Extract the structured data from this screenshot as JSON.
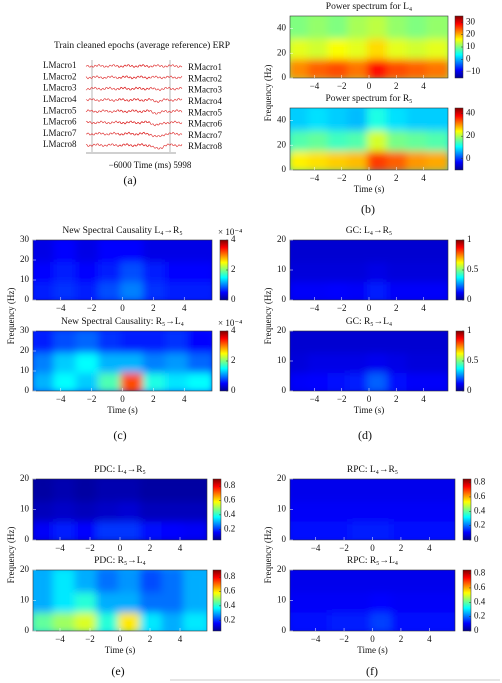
{
  "erp_panel": {
    "title": "Train cleaned epochs (average reference) ERP",
    "left_channels": [
      "LMacro1",
      "LMacro2",
      "LMacro3",
      "LMacro4",
      "LMacro5",
      "LMacro6",
      "LMacro7",
      "LMacro8"
    ],
    "right_channels": [
      "RMacro1",
      "RMacro2",
      "RMacro3",
      "RMacro4",
      "RMacro5",
      "RMacro6",
      "RMacro7",
      "RMacro8"
    ],
    "time_axis": "−6000 Time (ms) 5998"
  },
  "panel_labels": [
    "(a)",
    "(b)",
    "(c)",
    "(d)",
    "(e)",
    "(f)"
  ],
  "chart_data": [
    {
      "type": "heatmap",
      "title": "Power spectrum for L₄",
      "xlim": [
        -5.8,
        5.8
      ],
      "xticks": [
        {
          "value": -4,
          "label": "−4"
        },
        {
          "value": -2,
          "label": "−2"
        },
        0,
        2,
        4
      ],
      "ylim": [
        0,
        50
      ],
      "yticks": [
        0,
        20,
        40
      ],
      "colorbar": {
        "lim": [
          -15,
          35
        ],
        "ticks": [
          {
            "value": -10,
            "label": "−10"
          },
          0,
          10,
          20,
          30
        ]
      },
      "z": [
        [
          22,
          24,
          25,
          23,
          28,
          25,
          24,
          23
        ],
        [
          15,
          14,
          16,
          15,
          18,
          15,
          14,
          15
        ],
        [
          10,
          11,
          10,
          12,
          13,
          11,
          10,
          11
        ]
      ]
    },
    {
      "type": "heatmap",
      "title": "Power spectrum for R₅",
      "xlabel": "Time (s)",
      "ylabel": "Frequency (Hz)",
      "xlim": [
        -5.8,
        5.8
      ],
      "xticks": [
        {
          "value": -4,
          "label": "−4"
        },
        {
          "value": -2,
          "label": "−2"
        },
        0,
        2,
        4
      ],
      "ylim": [
        0,
        50
      ],
      "yticks": [
        0,
        20,
        40
      ],
      "colorbar": {
        "lim": [
          -10,
          45
        ],
        "ticks": [
          0,
          20,
          40
        ]
      },
      "z": [
        [
          25,
          26,
          27,
          28,
          35,
          33,
          30,
          29
        ],
        [
          15,
          16,
          14,
          15,
          22,
          17,
          16,
          15
        ],
        [
          8,
          9,
          8,
          7,
          12,
          9,
          8,
          8
        ]
      ]
    },
    {
      "type": "heatmap",
      "title": "New Spectral Causality L₄→R₅",
      "xlim": [
        -5.8,
        5.8
      ],
      "xticks": [
        {
          "value": -4,
          "label": "−4"
        },
        {
          "value": -2,
          "label": "−2"
        },
        0,
        2,
        4
      ],
      "ylim": [
        0,
        30
      ],
      "yticks": [
        0,
        10,
        20,
        30
      ],
      "colorbar": {
        "lim": [
          0,
          4
        ],
        "ticks": [
          0,
          2,
          4
        ],
        "label": "× 10⁻⁴"
      },
      "z": [
        [
          0.6,
          0.7,
          0.6,
          0.8,
          1.0,
          0.7,
          0.6,
          0.6
        ],
        [
          0.5,
          0.6,
          0.5,
          0.6,
          0.8,
          0.6,
          0.5,
          0.5
        ],
        [
          0.4,
          0.5,
          0.4,
          0.5,
          0.5,
          0.4,
          0.4,
          0.4
        ]
      ]
    },
    {
      "type": "heatmap",
      "title": "New Spectral Causality: R₅→L₄",
      "xlabel": "Time (s)",
      "ylabel": "Frequency (Hz)",
      "xlim": [
        -5.8,
        5.8
      ],
      "xticks": [
        {
          "value": -4,
          "label": "−4"
        },
        {
          "value": -2,
          "label": "−2"
        },
        0,
        2,
        4
      ],
      "ylim": [
        0,
        30
      ],
      "yticks": [
        0,
        10,
        20,
        30
      ],
      "colorbar": {
        "lim": [
          0,
          4
        ],
        "ticks": [
          0,
          2,
          4
        ],
        "label": "× 10⁻⁴"
      },
      "z": [
        [
          1.2,
          1.5,
          1.3,
          1.8,
          3.2,
          1.6,
          1.4,
          1.5
        ],
        [
          1.0,
          1.3,
          1.5,
          1.2,
          1.2,
          1.0,
          1.1,
          0.9
        ],
        [
          0.6,
          0.8,
          0.9,
          0.7,
          0.6,
          0.6,
          0.7,
          0.5
        ]
      ]
    },
    {
      "type": "heatmap",
      "title": "GC: L₄→R₅",
      "xlim": [
        -5.8,
        5.8
      ],
      "xticks": [
        {
          "value": -4,
          "label": "−4"
        },
        {
          "value": -2,
          "label": "−2"
        },
        0,
        2,
        4
      ],
      "ylim": [
        0,
        20
      ],
      "yticks": [
        0,
        10,
        20
      ],
      "colorbar": {
        "lim": [
          0,
          1
        ],
        "ticks": [
          0,
          0.5,
          1
        ]
      },
      "z": [
        [
          0.12,
          0.12,
          0.13,
          0.12,
          0.15,
          0.12,
          0.12,
          0.12
        ],
        [
          0.09,
          0.09,
          0.09,
          0.09,
          0.1,
          0.09,
          0.09,
          0.09
        ],
        [
          0.08,
          0.08,
          0.08,
          0.08,
          0.08,
          0.08,
          0.08,
          0.08
        ]
      ]
    },
    {
      "type": "heatmap",
      "title": "GC: R₅→L₄",
      "xlabel": "Time (s)",
      "ylabel": "Frequency (Hz)",
      "xlim": [
        -5.8,
        5.8
      ],
      "xticks": [
        {
          "value": -4,
          "label": "−4"
        },
        {
          "value": -2,
          "label": "−2"
        },
        0,
        2,
        4
      ],
      "ylim": [
        0,
        20
      ],
      "yticks": [
        0,
        10,
        20
      ],
      "colorbar": {
        "lim": [
          0,
          1
        ],
        "ticks": [
          0,
          0.5,
          1
        ]
      },
      "z": [
        [
          0.12,
          0.13,
          0.14,
          0.15,
          0.22,
          0.14,
          0.12,
          0.12
        ],
        [
          0.09,
          0.1,
          0.1,
          0.1,
          0.11,
          0.1,
          0.09,
          0.09
        ],
        [
          0.08,
          0.08,
          0.08,
          0.08,
          0.08,
          0.08,
          0.08,
          0.08
        ]
      ]
    },
    {
      "type": "heatmap",
      "title": "PDC: L₄→R₅",
      "xlim": [
        -5.8,
        5.8
      ],
      "xticks": [
        {
          "value": -4,
          "label": "−4"
        },
        {
          "value": -2,
          "label": "−2"
        },
        0,
        2,
        4
      ],
      "ylim": [
        0,
        20
      ],
      "yticks": [
        0,
        10,
        20
      ],
      "colorbar": {
        "lim": [
          0.05,
          0.9
        ],
        "ticks": [
          0.2,
          0.4,
          0.6,
          0.8
        ]
      },
      "z": [
        [
          0.15,
          0.18,
          0.16,
          0.2,
          0.2,
          0.17,
          0.16,
          0.15
        ],
        [
          0.1,
          0.11,
          0.1,
          0.11,
          0.12,
          0.1,
          0.1,
          0.1
        ],
        [
          0.08,
          0.09,
          0.08,
          0.09,
          0.09,
          0.08,
          0.08,
          0.08
        ]
      ]
    },
    {
      "type": "heatmap",
      "title": "PDC: R₅→L₄",
      "xlabel": "Time (s)",
      "ylabel": "Frequency (Hz)",
      "xlim": [
        -5.8,
        5.8
      ],
      "xticks": [
        {
          "value": -4,
          "label": "−4"
        },
        {
          "value": -2,
          "label": "−2"
        },
        0,
        2,
        4
      ],
      "ylim": [
        0,
        20
      ],
      "yticks": [
        0,
        10,
        20
      ],
      "colorbar": {
        "lim": [
          0.05,
          0.9
        ],
        "ticks": [
          0.2,
          0.4,
          0.6,
          0.8
        ]
      },
      "z": [
        [
          0.45,
          0.5,
          0.55,
          0.4,
          0.6,
          0.35,
          0.3,
          0.35
        ],
        [
          0.3,
          0.35,
          0.4,
          0.3,
          0.3,
          0.25,
          0.25,
          0.3
        ],
        [
          0.3,
          0.35,
          0.3,
          0.25,
          0.28,
          0.22,
          0.25,
          0.3
        ]
      ]
    },
    {
      "type": "heatmap",
      "title": "RPC: L₄→R₅",
      "xlim": [
        -5.8,
        5.8
      ],
      "xticks": [
        {
          "value": -4,
          "label": "−4"
        },
        {
          "value": -2,
          "label": "−2"
        },
        0,
        2,
        4
      ],
      "ylim": [
        0,
        20
      ],
      "yticks": [
        0,
        10,
        20
      ],
      "colorbar": {
        "lim": [
          0,
          0.85
        ],
        "ticks": [
          0,
          0.2,
          0.4,
          0.6,
          0.8
        ]
      },
      "z": [
        [
          0.12,
          0.12,
          0.12,
          0.13,
          0.13,
          0.12,
          0.12,
          0.12
        ],
        [
          0.1,
          0.1,
          0.1,
          0.1,
          0.1,
          0.1,
          0.1,
          0.1
        ],
        [
          0.09,
          0.09,
          0.09,
          0.09,
          0.09,
          0.09,
          0.09,
          0.09
        ]
      ]
    },
    {
      "type": "heatmap",
      "title": "RPC: R₅→L₄",
      "xlabel": "Time (s)",
      "ylabel": "Frequency (Hz)",
      "xlim": [
        -5.8,
        5.8
      ],
      "xticks": [
        {
          "value": -4,
          "label": "−4"
        },
        {
          "value": -2,
          "label": "−2"
        },
        0,
        2,
        4
      ],
      "ylim": [
        0,
        20
      ],
      "yticks": [
        0,
        10,
        20
      ],
      "colorbar": {
        "lim": [
          0,
          0.85
        ],
        "ticks": [
          0,
          0.2,
          0.4,
          0.6,
          0.8
        ]
      },
      "z": [
        [
          0.12,
          0.12,
          0.13,
          0.13,
          0.16,
          0.12,
          0.12,
          0.12
        ],
        [
          0.1,
          0.1,
          0.1,
          0.1,
          0.11,
          0.1,
          0.1,
          0.1
        ],
        [
          0.09,
          0.09,
          0.09,
          0.09,
          0.09,
          0.09,
          0.09,
          0.09
        ]
      ]
    }
  ]
}
